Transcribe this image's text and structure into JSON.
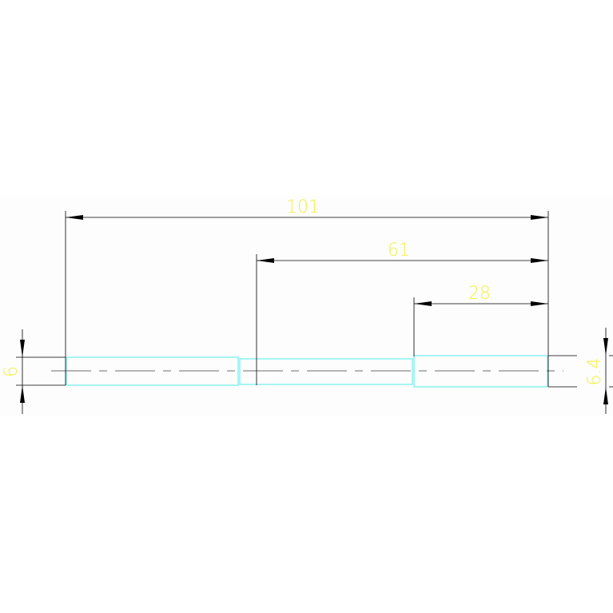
{
  "drawing": {
    "dimensions": {
      "overall_length": "101",
      "middle_length": "61",
      "right_length": "28",
      "left_diameter": "6",
      "right_diameter": "6.4"
    },
    "colors": {
      "background": "#ffffff",
      "drawing_area": "#fcfdfc",
      "dimension_line": "#000000",
      "dimension_text": "#f2f04a",
      "outline": "#6ef0f0",
      "center_line": "#808080"
    }
  }
}
